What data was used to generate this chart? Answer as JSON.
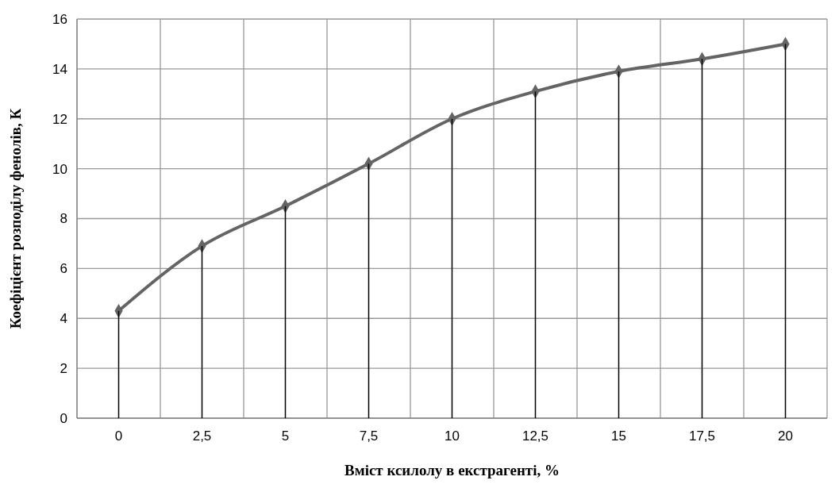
{
  "chart_data": {
    "type": "line",
    "xlabel": "Вміст ксилолу в екстрагенті, %",
    "ylabel": "Коефіцієнт розподілу фенолів, К",
    "categories": [
      "0",
      "2,5",
      "5",
      "7,5",
      "10",
      "12,5",
      "15",
      "17,5",
      "20"
    ],
    "series": [
      {
        "color": "#646464",
        "marker": "diamond",
        "values": [
          4.3,
          6.9,
          8.5,
          10.2,
          12.0,
          13.1,
          13.9,
          14.4,
          15.0
        ]
      },
      {
        "type": "bar",
        "color": "#000000",
        "values": [
          4.3,
          6.9,
          8.5,
          10.2,
          12.0,
          13.1,
          13.9,
          14.4,
          15.0
        ]
      }
    ],
    "ylim": [
      0,
      16
    ],
    "yticks": [
      0,
      2,
      4,
      6,
      8,
      10,
      12,
      14,
      16
    ],
    "grid": true,
    "line_style": "solid"
  }
}
